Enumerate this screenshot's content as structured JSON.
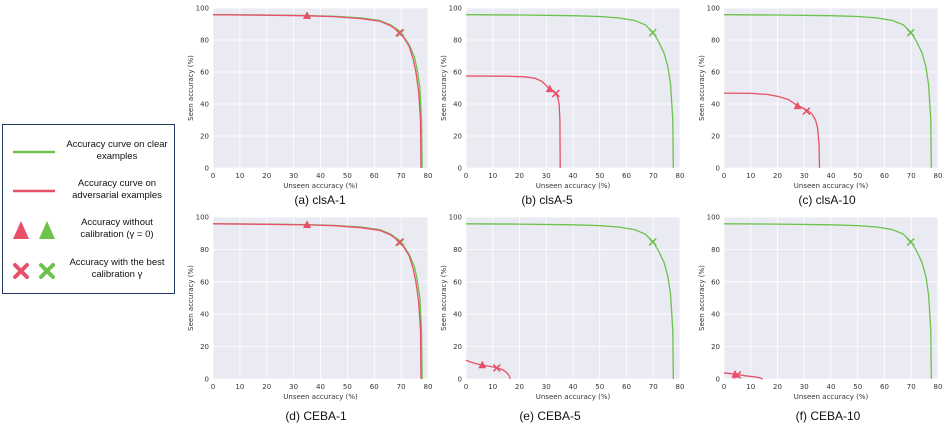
{
  "legend": {
    "clean_curve": "Accuracy curve on clear examples",
    "adv_curve": "Accuracy curve on adversarial examples",
    "no_calib": "Accuracy without calibration (γ = 0)",
    "best_calib": "Accuracy with the best calibration γ",
    "colors": {
      "clean": "#6cc24a",
      "adv": "#e8506a"
    }
  },
  "chart_data": [
    {
      "type": "line",
      "title": "(a) clsA-1",
      "xlabel": "Unseen accuracy (%)",
      "ylabel": "Seen accuracy (%)",
      "xlim": [
        0,
        80
      ],
      "ylim": [
        0,
        100
      ],
      "xticks": [
        0,
        10,
        20,
        30,
        40,
        50,
        60,
        70,
        80
      ],
      "yticks": [
        0,
        20,
        40,
        60,
        80,
        100
      ],
      "series": [
        {
          "name": "clean",
          "color": "#6cc24a",
          "points": [
            [
              0,
              95.8
            ],
            [
              20,
              95.6
            ],
            [
              35,
              95.3
            ],
            [
              45,
              94.8
            ],
            [
              55,
              93.8
            ],
            [
              62,
              92.2
            ],
            [
              66,
              89.5
            ],
            [
              69,
              86
            ],
            [
              71,
              82
            ],
            [
              73,
              77
            ],
            [
              75,
              69
            ],
            [
              76,
              61
            ],
            [
              77,
              50
            ],
            [
              77.6,
              30
            ],
            [
              77.8,
              0
            ]
          ],
          "no_calib": [
            35,
            95.1
          ],
          "best": [
            69.8,
            84.5
          ]
        },
        {
          "name": "adversarial",
          "color": "#e8506a",
          "points": [
            [
              0,
              95.8
            ],
            [
              20,
              95.5
            ],
            [
              35,
              95.1
            ],
            [
              45,
              94.6
            ],
            [
              55,
              93.4
            ],
            [
              62,
              91.8
            ],
            [
              66,
              89
            ],
            [
              69,
              85.5
            ],
            [
              71,
              81.5
            ],
            [
              73,
              76
            ],
            [
              74.5,
              68
            ],
            [
              75.5,
              60
            ],
            [
              76.5,
              48
            ],
            [
              77.2,
              30
            ],
            [
              77.4,
              0
            ]
          ],
          "no_calib": [
            35,
            95.1
          ],
          "best": [
            69.3,
            84.4
          ]
        }
      ]
    },
    {
      "type": "line",
      "title": "(b) clsA-5",
      "xlabel": "Unseen accuracy (%)",
      "ylabel": "Seen accuracy (%)",
      "xlim": [
        0,
        80
      ],
      "ylim": [
        0,
        100
      ],
      "xticks": [
        0,
        10,
        20,
        30,
        40,
        50,
        60,
        70,
        80
      ],
      "yticks": [
        0,
        20,
        40,
        60,
        80,
        100
      ],
      "series": [
        {
          "name": "clean",
          "color": "#6cc24a",
          "points": [
            [
              0,
              95.8
            ],
            [
              20,
              95.6
            ],
            [
              40,
              95.2
            ],
            [
              50,
              94.7
            ],
            [
              57,
              93.8
            ],
            [
              63,
              92.2
            ],
            [
              67,
              89.5
            ],
            [
              70,
              84.5
            ],
            [
              72,
              79
            ],
            [
              74,
              72
            ],
            [
              75.5,
              63
            ],
            [
              76.5,
              52
            ],
            [
              77.3,
              30
            ],
            [
              77.5,
              0
            ]
          ],
          "no_calib": null,
          "best": [
            69.8,
            84.6
          ]
        },
        {
          "name": "adversarial",
          "color": "#e8506a",
          "points": [
            [
              0,
              57.5
            ],
            [
              15,
              57.4
            ],
            [
              22,
              57
            ],
            [
              26,
              56
            ],
            [
              28.5,
              54
            ],
            [
              30,
              51.5
            ],
            [
              31.3,
              49
            ],
            [
              32.5,
              48
            ],
            [
              33.5,
              46.7
            ],
            [
              34.3,
              44
            ],
            [
              34.8,
              40
            ],
            [
              35.1,
              30
            ],
            [
              35.2,
              0
            ]
          ],
          "no_calib": [
            31.3,
            49.3
          ],
          "best": [
            33.6,
            46.6
          ]
        }
      ]
    },
    {
      "type": "line",
      "title": "(c) clsA-10",
      "xlabel": "Unseen accuracy (%)",
      "ylabel": "Seen accuracy (%)",
      "xlim": [
        0,
        80
      ],
      "ylim": [
        0,
        100
      ],
      "xticks": [
        0,
        10,
        20,
        30,
        40,
        50,
        60,
        70,
        80
      ],
      "yticks": [
        0,
        20,
        40,
        60,
        80,
        100
      ],
      "series": [
        {
          "name": "clean",
          "color": "#6cc24a",
          "points": [
            [
              0,
              95.8
            ],
            [
              20,
              95.6
            ],
            [
              40,
              95.2
            ],
            [
              50,
              94.7
            ],
            [
              57,
              93.8
            ],
            [
              63,
              92.2
            ],
            [
              67,
              89.5
            ],
            [
              70,
              84.5
            ],
            [
              72,
              79
            ],
            [
              74,
              72
            ],
            [
              75.5,
              63
            ],
            [
              76.5,
              52
            ],
            [
              77.3,
              30
            ],
            [
              77.5,
              0
            ]
          ],
          "no_calib": null,
          "best": [
            69.8,
            84.6
          ]
        },
        {
          "name": "adversarial",
          "color": "#e8506a",
          "points": [
            [
              0,
              46.8
            ],
            [
              10,
              46.6
            ],
            [
              16,
              46
            ],
            [
              20,
              44.8
            ],
            [
              24,
              42.8
            ],
            [
              27,
              39.5
            ],
            [
              29.5,
              37.5
            ],
            [
              31.5,
              35.6
            ],
            [
              33,
              33.5
            ],
            [
              34.2,
              30
            ],
            [
              35,
              25
            ],
            [
              35.5,
              15
            ],
            [
              35.7,
              0
            ]
          ],
          "no_calib": [
            27.5,
            38.7
          ],
          "best": [
            30.8,
            35.6
          ]
        }
      ]
    },
    {
      "type": "line",
      "title": "(d) CEBA-1",
      "xlabel": "Unseen accuracy (%)",
      "ylabel": "Seen accuracy (%)",
      "xlim": [
        0,
        80
      ],
      "ylim": [
        0,
        100
      ],
      "xticks": [
        0,
        10,
        20,
        30,
        40,
        50,
        60,
        70,
        80
      ],
      "yticks": [
        0,
        20,
        40,
        60,
        80,
        100
      ],
      "series": [
        {
          "name": "clean",
          "color": "#6cc24a",
          "points": [
            [
              0,
              95.8
            ],
            [
              20,
              95.6
            ],
            [
              35,
              95.3
            ],
            [
              45,
              94.8
            ],
            [
              55,
              93.8
            ],
            [
              62,
              92.2
            ],
            [
              66,
              89.5
            ],
            [
              69,
              86
            ],
            [
              71,
              82
            ],
            [
              73,
              77
            ],
            [
              75,
              69
            ],
            [
              76,
              61
            ],
            [
              77,
              50
            ],
            [
              77.6,
              30
            ],
            [
              77.8,
              0
            ]
          ],
          "no_calib": [
            35,
            95.1
          ],
          "best": [
            69.8,
            84.5
          ]
        },
        {
          "name": "adversarial",
          "color": "#e8506a",
          "points": [
            [
              0,
              95.8
            ],
            [
              20,
              95.5
            ],
            [
              35,
              95.1
            ],
            [
              45,
              94.6
            ],
            [
              55,
              93.4
            ],
            [
              62,
              91.8
            ],
            [
              66,
              89
            ],
            [
              69,
              85.5
            ],
            [
              71,
              81.5
            ],
            [
              73,
              76
            ],
            [
              74.5,
              68
            ],
            [
              75.5,
              60
            ],
            [
              76.5,
              48
            ],
            [
              77.2,
              30
            ],
            [
              77.4,
              0
            ]
          ],
          "no_calib": [
            35,
            95.1
          ],
          "best": [
            69.3,
            84.4
          ]
        }
      ]
    },
    {
      "type": "line",
      "title": "(e) CEBA-5",
      "xlabel": "Unseen accuracy (%)",
      "ylabel": "Seen accuracy (%)",
      "xlim": [
        0,
        80
      ],
      "ylim": [
        0,
        100
      ],
      "xticks": [
        0,
        10,
        20,
        30,
        40,
        50,
        60,
        70,
        80
      ],
      "yticks": [
        0,
        20,
        40,
        60,
        80,
        100
      ],
      "series": [
        {
          "name": "clean",
          "color": "#6cc24a",
          "points": [
            [
              0,
              95.8
            ],
            [
              20,
              95.6
            ],
            [
              40,
              95.2
            ],
            [
              50,
              94.7
            ],
            [
              57,
              93.8
            ],
            [
              63,
              92.2
            ],
            [
              67,
              89.5
            ],
            [
              70,
              84.5
            ],
            [
              72,
              79
            ],
            [
              74,
              72
            ],
            [
              75.5,
              63
            ],
            [
              76.5,
              52
            ],
            [
              77.3,
              30
            ],
            [
              77.5,
              0
            ]
          ],
          "no_calib": null,
          "best": [
            69.8,
            84.6
          ]
        },
        {
          "name": "adversarial",
          "color": "#e8506a",
          "points": [
            [
              0,
              11.5
            ],
            [
              3,
              9.8
            ],
            [
              6,
              8.6
            ],
            [
              9,
              7.8
            ],
            [
              12,
              6.8
            ],
            [
              14,
              5.5
            ],
            [
              15.5,
              3.5
            ],
            [
              16.3,
              1.5
            ],
            [
              16.5,
              0
            ]
          ],
          "no_calib": [
            6.1,
            8.5
          ],
          "best": [
            11.5,
            6.8
          ]
        }
      ]
    },
    {
      "type": "line",
      "title": "(f) CEBA-10",
      "xlabel": "Unseen accuracy (%)",
      "ylabel": "Seen accuracy (%)",
      "xlim": [
        0,
        80
      ],
      "ylim": [
        0,
        100
      ],
      "xticks": [
        0,
        10,
        20,
        30,
        40,
        50,
        60,
        70,
        80
      ],
      "yticks": [
        0,
        20,
        40,
        60,
        80,
        100
      ],
      "series": [
        {
          "name": "clean",
          "color": "#6cc24a",
          "points": [
            [
              0,
              95.8
            ],
            [
              20,
              95.6
            ],
            [
              40,
              95.2
            ],
            [
              50,
              94.7
            ],
            [
              57,
              93.8
            ],
            [
              63,
              92.2
            ],
            [
              67,
              89.5
            ],
            [
              70,
              84.5
            ],
            [
              72,
              79
            ],
            [
              74,
              72
            ],
            [
              75.5,
              63
            ],
            [
              76.5,
              52
            ],
            [
              77.3,
              30
            ],
            [
              77.5,
              0
            ]
          ],
          "no_calib": null,
          "best": [
            69.8,
            84.6
          ]
        },
        {
          "name": "adversarial",
          "color": "#e8506a",
          "points": [
            [
              0,
              3.8
            ],
            [
              3,
              3.2
            ],
            [
              5,
              2.8
            ],
            [
              8,
              2.0
            ],
            [
              11,
              1.4
            ],
            [
              13.5,
              0.7
            ],
            [
              14.5,
              0
            ]
          ],
          "no_calib": [
            4.2,
            2.6
          ],
          "best": [
            5.0,
            2.5
          ]
        }
      ]
    }
  ]
}
